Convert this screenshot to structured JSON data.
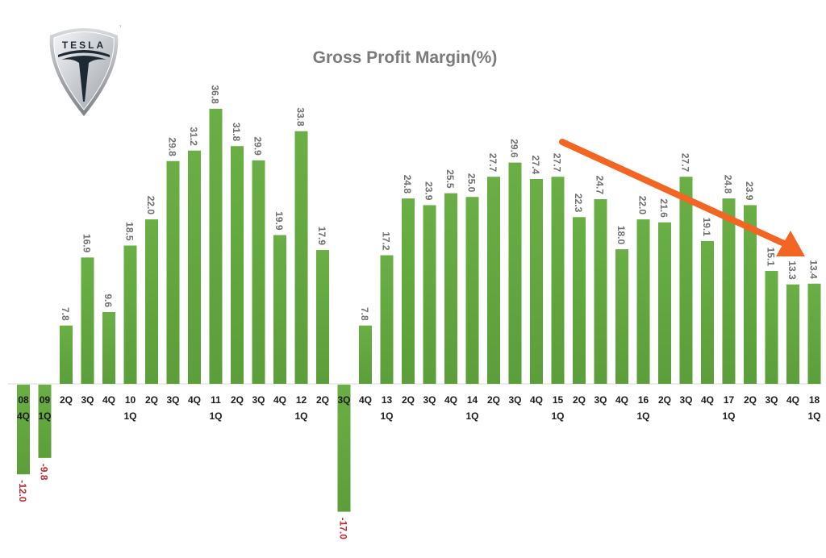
{
  "header": {
    "title": "Gross Profit Margin(%)",
    "logo_text": "TESLA",
    "logo_tm": "TM"
  },
  "colors": {
    "bar": "#6aaf45",
    "bar_dark": "#5c9e3a",
    "positive_label": "#6f6f6f",
    "negative_label": "#c0282d",
    "axis_label": "#1a1a1a",
    "trend_arrow": "#f26522",
    "title": "#7a7a7a"
  },
  "chart_data": {
    "type": "bar",
    "title": "Gross Profit Margin(%)",
    "xlabel": "",
    "ylabel": "",
    "ylim": [
      -17.0,
      36.8
    ],
    "grid": false,
    "legend": null,
    "categories": [
      "08 4Q",
      "09 1Q",
      "2Q",
      "3Q",
      "4Q",
      "10 1Q",
      "2Q",
      "3Q",
      "4Q",
      "11 1Q",
      "2Q",
      "3Q",
      "4Q",
      "12 1Q",
      "2Q",
      "3Q",
      "4Q",
      "13 1Q",
      "2Q",
      "3Q",
      "4Q",
      "14 1Q",
      "2Q",
      "3Q",
      "4Q",
      "15 1Q",
      "2Q",
      "3Q",
      "4Q",
      "16 1Q",
      "2Q",
      "3Q",
      "4Q",
      "17 1Q",
      "2Q",
      "3Q",
      "4Q",
      "18 1Q"
    ],
    "tick_labels": [
      [
        "08",
        "4Q"
      ],
      [
        "09",
        "1Q"
      ],
      [
        "2Q",
        ""
      ],
      [
        "3Q",
        ""
      ],
      [
        "4Q",
        ""
      ],
      [
        "10",
        "1Q"
      ],
      [
        "2Q",
        ""
      ],
      [
        "3Q",
        ""
      ],
      [
        "4Q",
        ""
      ],
      [
        "11",
        "1Q"
      ],
      [
        "2Q",
        ""
      ],
      [
        "3Q",
        ""
      ],
      [
        "4Q",
        ""
      ],
      [
        "12",
        "1Q"
      ],
      [
        "2Q",
        ""
      ],
      [
        "3Q",
        ""
      ],
      [
        "4Q",
        ""
      ],
      [
        "13",
        "1Q"
      ],
      [
        "2Q",
        ""
      ],
      [
        "3Q",
        ""
      ],
      [
        "4Q",
        ""
      ],
      [
        "14",
        "1Q"
      ],
      [
        "2Q",
        ""
      ],
      [
        "3Q",
        ""
      ],
      [
        "4Q",
        ""
      ],
      [
        "15",
        "1Q"
      ],
      [
        "2Q",
        ""
      ],
      [
        "3Q",
        ""
      ],
      [
        "4Q",
        ""
      ],
      [
        "16",
        "1Q"
      ],
      [
        "2Q",
        ""
      ],
      [
        "3Q",
        ""
      ],
      [
        "4Q",
        ""
      ],
      [
        "17",
        "1Q"
      ],
      [
        "2Q",
        ""
      ],
      [
        "3Q",
        ""
      ],
      [
        "4Q",
        ""
      ],
      [
        "18",
        "1Q"
      ]
    ],
    "values": [
      -12.0,
      -9.8,
      7.8,
      16.9,
      9.6,
      18.5,
      22.0,
      29.8,
      31.2,
      36.8,
      31.8,
      29.9,
      19.9,
      33.8,
      17.9,
      -17.0,
      7.8,
      17.2,
      24.8,
      23.9,
      25.5,
      25.0,
      27.7,
      29.6,
      27.4,
      27.7,
      22.3,
      24.7,
      18.0,
      22.0,
      21.6,
      27.7,
      19.1,
      24.8,
      23.9,
      15.1,
      13.3,
      13.4
    ],
    "value_labels": [
      "-12.0",
      "-9.8",
      "7.8",
      "16.9",
      "9.6",
      "18.5",
      "22.0",
      "29.8",
      "31.2",
      "36.8",
      "31.8",
      "29.9",
      "19.9",
      "33.8",
      "17.9",
      "-17.0",
      "7.8",
      "17.2",
      "24.8",
      "23.9",
      "25.5",
      "25.0",
      "27.7",
      "29.6",
      "27.4",
      "27.7",
      "22.3",
      "24.7",
      "18.0",
      "22.0",
      "21.6",
      "27.7",
      "19.1",
      "24.8",
      "23.9",
      "15.1",
      "13.3",
      "13.4"
    ],
    "annotations": [
      {
        "type": "arrow",
        "description": "downward trend arrow from 15 1Q area to 18 1Q",
        "from_category": "15 1Q",
        "to_category": "18 1Q"
      }
    ]
  }
}
